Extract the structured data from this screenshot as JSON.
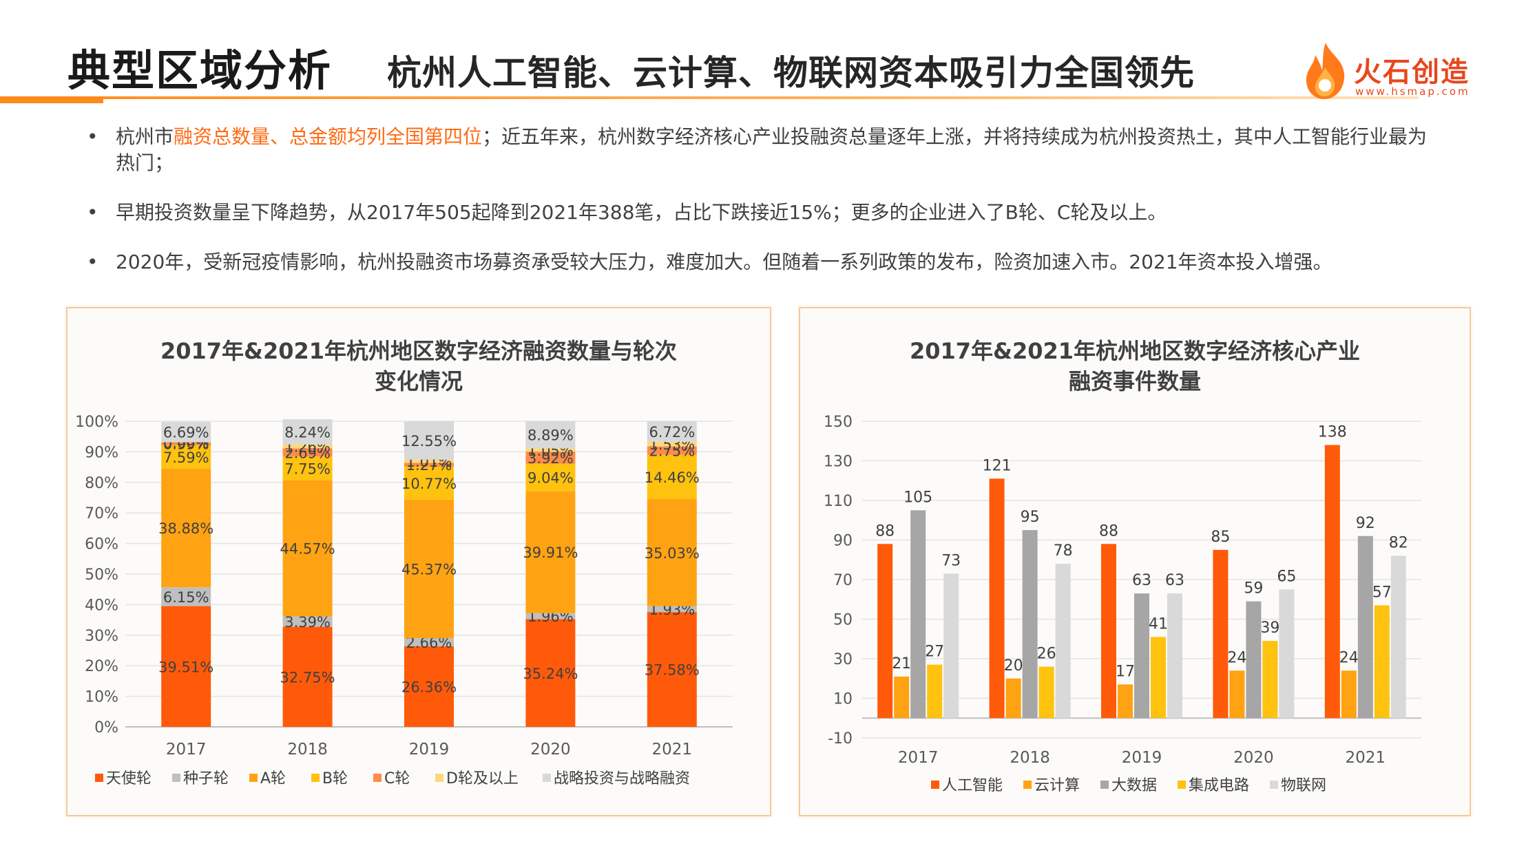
{
  "header": {
    "title": "典型区域分析",
    "subtitle": "杭州人工智能、云计算、物联网资本吸引力全国领先",
    "logo_text": "火石创造",
    "logo_url": "www.hsmap.com"
  },
  "bullets": [
    {
      "pre": "杭州市",
      "highlight": "融资总数量、总金额均列全国第四位",
      "post": "；近五年来，杭州数字经济核心产业投融资总量逐年上涨，并将持续成为杭州投资热土，其中人工智能行业最为热门；"
    },
    {
      "pre": "早期投资数量呈下降趋势，从2017年505起降到2021年388笔，占比下跌接近15%；更多的企业进入了B轮、C轮及以上。",
      "highlight": "",
      "post": ""
    },
    {
      "pre": "2020年，受新冠疫情影响，杭州投融资市场募资承受较大压力，难度加大。但随着一系列政策的发布，险资加速入市。2021年资本投入增强。",
      "highlight": "",
      "post": ""
    }
  ],
  "colors": {
    "accent": "#ff8a1c",
    "angel": "#ff5a0a",
    "seed": "#bfbfbf",
    "a_round": "#ffa312",
    "b_round": "#ffc20e",
    "c_round": "#ff8c4a",
    "d_round": "#ffd77a",
    "strategic": "#d9d9d9",
    "ai": "#ff5a0a",
    "cloud": "#ffa312",
    "bigdata": "#a6a6a6",
    "ic": "#ffc20e",
    "iot": "#d9d9d9"
  },
  "chart_data": [
    {
      "type": "bar",
      "stacked": true,
      "title": "2017年&2021年杭州地区数字经济融资数量与轮次变化情况",
      "title_lines": [
        "2017年&2021年杭州地区数字经济融资数量与轮次",
        "变化情况"
      ],
      "categories": [
        "2017",
        "2018",
        "2019",
        "2020",
        "2021"
      ],
      "ylim": [
        0,
        100
      ],
      "yticks": [
        "0%",
        "10%",
        "20%",
        "30%",
        "40%",
        "50%",
        "60%",
        "70%",
        "80%",
        "90%",
        "100%"
      ],
      "legend_position": "bottom",
      "series": [
        {
          "name": "天使轮",
          "values": [
            39.51,
            32.75,
            26.36,
            35.24,
            37.58
          ],
          "labels": [
            "39.51%",
            "32.75%",
            "26.36%",
            "35.24%",
            "37.58%"
          ],
          "color": "#ff5a0a"
        },
        {
          "name": "种子轮",
          "values": [
            6.15,
            3.39,
            2.66,
            1.96,
            1.93
          ],
          "labels": [
            "6.15%",
            "3.39%",
            "2.66%",
            "1.96%",
            "1.93%"
          ],
          "color": "#bfbfbf"
        },
        {
          "name": "A轮",
          "values": [
            38.88,
            44.57,
            45.37,
            39.91,
            35.03
          ],
          "labels": [
            "38.88%",
            "44.57%",
            "45.37%",
            "39.91%",
            "35.03%"
          ],
          "color": "#ffa312"
        },
        {
          "name": "B轮",
          "values": [
            7.59,
            7.75,
            10.77,
            9.04,
            14.46
          ],
          "labels": [
            "7.59%",
            "7.75%",
            "10.77%",
            "9.04%",
            "14.46%"
          ],
          "color": "#ffc20e"
        },
        {
          "name": "C轮",
          "values": [
            0.99,
            2.69,
            1.27,
            3.92,
            2.75
          ],
          "labels": [
            "0.99%",
            "2.69%",
            "1.27%",
            "3.92%",
            "2.75%"
          ],
          "color": "#ff8c4a"
        },
        {
          "name": "D轮及以上",
          "values": [
            0.0,
            1.26,
            1.01,
            1.05,
            1.53
          ],
          "labels": [
            "0.00%",
            "1.26%",
            "1.01%",
            "1.05%",
            "1.53%"
          ],
          "color": "#ffd77a"
        },
        {
          "name": "战略投资与战略融资",
          "values": [
            6.69,
            8.24,
            12.55,
            8.89,
            6.72
          ],
          "labels": [
            "6.69%",
            "8.24%",
            "12.55%",
            "8.89%",
            "6.72%"
          ],
          "color": "#d9d9d9"
        }
      ]
    },
    {
      "type": "bar",
      "title": "2017年&2021年杭州地区数字经济核心产业融资事件数量",
      "title_lines": [
        "2017年&2021年杭州地区数字经济核心产业",
        "融资事件数量"
      ],
      "categories": [
        "2017",
        "2018",
        "2019",
        "2020",
        "2021"
      ],
      "ylim": [
        -10,
        150
      ],
      "yticks": [
        "-10",
        "10",
        "30",
        "50",
        "70",
        "90",
        "110",
        "130",
        "150"
      ],
      "legend_position": "bottom",
      "series": [
        {
          "name": "人工智能",
          "values": [
            88,
            121,
            88,
            85,
            138
          ],
          "color": "#ff5a0a"
        },
        {
          "name": "云计算",
          "values": [
            21,
            20,
            17,
            24,
            24
          ],
          "color": "#ffa312"
        },
        {
          "name": "大数据",
          "values": [
            105,
            95,
            63,
            59,
            92
          ],
          "color": "#a6a6a6"
        },
        {
          "name": "集成电路",
          "values": [
            27,
            26,
            41,
            39,
            57
          ],
          "color": "#ffc20e"
        },
        {
          "name": "物联网",
          "values": [
            73,
            78,
            63,
            65,
            82
          ],
          "color": "#d9d9d9"
        }
      ]
    }
  ]
}
